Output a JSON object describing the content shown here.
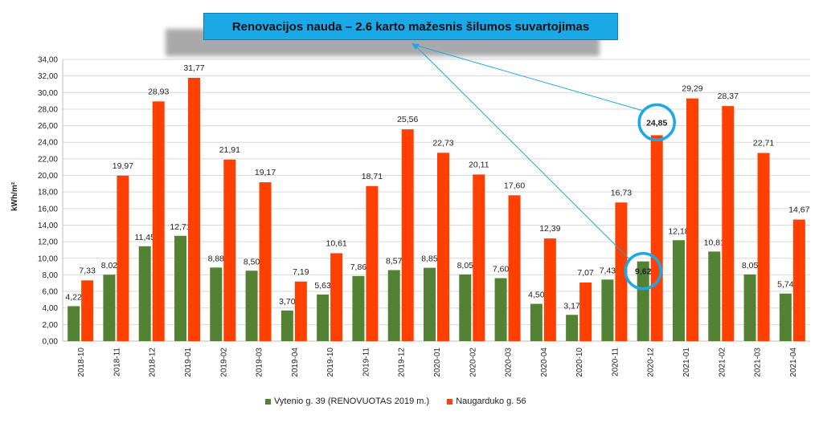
{
  "chart_data": {
    "type": "bar",
    "title": "Renovacijos nauda – 2.6 karto mažesnis šilumos suvartojimas",
    "ylabel": "kWh/m²",
    "ylim": [
      0,
      34
    ],
    "ytick_step": 2,
    "grid": true,
    "legend": "bottom",
    "categories": [
      "2018-10",
      "2018-11",
      "2018-12",
      "2019-01",
      "2019-02",
      "2019-03",
      "2019-04",
      "2019-10",
      "2019-11",
      "2019-12",
      "2020-01",
      "2020-02",
      "2020-03",
      "2020-04",
      "2020-10",
      "2020-11",
      "2020-12",
      "2021-01",
      "2021-02",
      "2021-03",
      "2021-04"
    ],
    "series": [
      {
        "name": "Vytenio g. 39 (RENOVUOTAS 2019 m.)",
        "color": "#548235",
        "values": [
          4.22,
          8.02,
          11.45,
          12.71,
          8.88,
          8.5,
          3.7,
          5.63,
          7.86,
          8.57,
          8.85,
          8.05,
          7.6,
          4.5,
          3.17,
          7.43,
          9.62,
          12.18,
          10.81,
          8.05,
          5.74
        ],
        "labels": [
          "4,22",
          "8,02",
          "11,45",
          "12,71",
          "8,88",
          "8,50",
          "3,70",
          "5,63",
          "7,86",
          "8,57",
          "8,85",
          "8,05",
          "7,60",
          "4,50",
          "3,17",
          "7,43",
          "9,62",
          "12,18",
          "10,81",
          "8,05",
          "5,74"
        ]
      },
      {
        "name": "Naugarduko g. 56",
        "color": "#ff4000",
        "values": [
          7.33,
          19.97,
          28.93,
          31.77,
          21.91,
          19.17,
          7.19,
          10.61,
          18.71,
          25.56,
          22.73,
          20.11,
          17.6,
          12.39,
          7.07,
          16.73,
          24.85,
          29.29,
          28.37,
          22.71,
          14.67
        ],
        "labels": [
          "7,33",
          "19,97",
          "28,93",
          "31,77",
          "21,91",
          "19,17",
          "7,19",
          "10,61",
          "18,71",
          "25,56",
          "22,73",
          "20,11",
          "17,60",
          "12,39",
          "7,07",
          "16,73",
          "24,85",
          "29,29",
          "28,37",
          "22,71",
          "14,67"
        ]
      }
    ],
    "highlight": {
      "category": "2020-12",
      "circle_color": "#1ba8e6",
      "banner_color": "#1ba8e6"
    }
  }
}
